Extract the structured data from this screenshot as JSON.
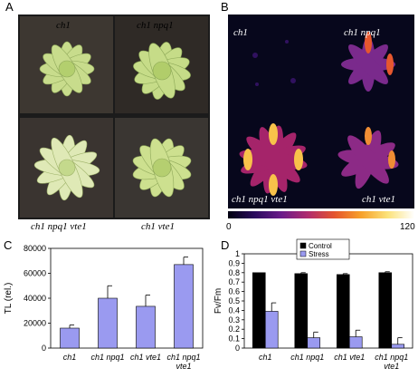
{
  "panels": {
    "a": {
      "letter": "A",
      "labels": [
        "ch1",
        "ch1 npq1",
        "ch1 npq1 vte1",
        "ch1 vte1"
      ]
    },
    "b": {
      "letter": "B",
      "labels": [
        "ch1",
        "ch1 npq1",
        "ch1 npq1 vte1",
        "ch1 vte1"
      ],
      "colorbar": {
        "min": "0",
        "max": "120"
      }
    },
    "c": {
      "letter": "C"
    },
    "d": {
      "letter": "D"
    }
  },
  "colors": {
    "bar_fill": "#9a9af0",
    "stress_fill": "#9a9af0",
    "control_fill": "#000000",
    "plant_green": "#b9d57c",
    "soil": "#4a3a2e"
  },
  "chart_data": [
    {
      "id": "C",
      "type": "bar",
      "ylabel": "TL (rel.)",
      "ylim": [
        0,
        80000
      ],
      "yticks": [
        "0",
        "20000",
        "40000",
        "60000",
        "80000"
      ],
      "categories": [
        "ch1",
        "ch1 npq1",
        "ch1 vte1",
        "ch1 npq1 vte1"
      ],
      "category_lines": [
        [
          "ch1"
        ],
        [
          "ch1 npq1"
        ],
        [
          "ch1 vte1"
        ],
        [
          "ch1 npq1",
          "vte1"
        ]
      ],
      "values": [
        16000,
        40000,
        33500,
        67000
      ],
      "errors": [
        2500,
        10000,
        9000,
        6000
      ],
      "grid": false
    },
    {
      "id": "D",
      "type": "bar",
      "ylabel": "Fv/Fm",
      "ylim": [
        0,
        1
      ],
      "yticks": [
        "0",
        "0.1",
        "0.2",
        "0.3",
        "0.4",
        "0.5",
        "0.6",
        "0.7",
        "0.8",
        "0.9",
        "1"
      ],
      "categories": [
        "ch1",
        "ch1 npq1",
        "ch1 vte1",
        "ch1 npq1 vte1"
      ],
      "category_lines": [
        [
          "ch1"
        ],
        [
          "ch1 npq1"
        ],
        [
          "ch1 vte1"
        ],
        [
          "ch1 npq1",
          "vte1"
        ]
      ],
      "legend_position": "top-center",
      "series": [
        {
          "name": "Control",
          "values": [
            0.8,
            0.79,
            0.78,
            0.8
          ],
          "errors": [
            0.0,
            0.01,
            0.01,
            0.01
          ]
        },
        {
          "name": "Stress",
          "values": [
            0.39,
            0.11,
            0.12,
            0.04
          ],
          "errors": [
            0.09,
            0.06,
            0.07,
            0.07
          ]
        }
      ],
      "grid": false
    }
  ]
}
